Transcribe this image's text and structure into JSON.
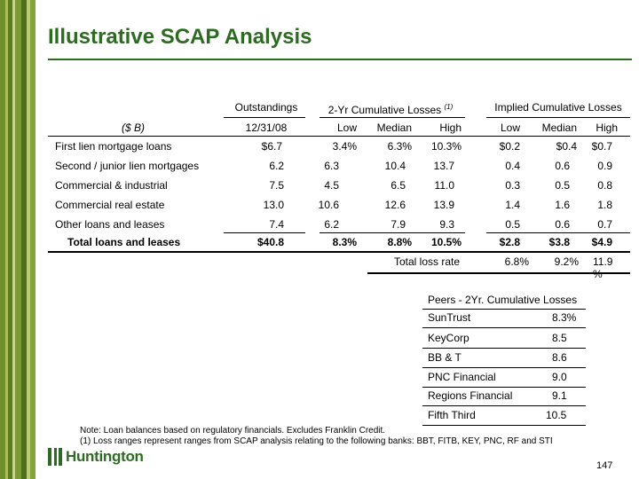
{
  "slide": {
    "title": "Illustrative SCAP Analysis",
    "page_number": "147"
  },
  "table": {
    "group_headers": {
      "outstandings": "Outstandings",
      "cumulative_losses": "2-Yr Cumulative Losses",
      "cumulative_losses_note": "(1)",
      "implied_losses": "Implied Cumulative Losses"
    },
    "sub_headers": {
      "units": "($ B)",
      "date": "12/31/08",
      "low": "Low",
      "median": "Median",
      "high": "High",
      "imp_low": "Low",
      "imp_median": "Median",
      "imp_high": "High"
    },
    "rows": [
      {
        "label": "First lien mortgage loans",
        "outstanding": "$6.7",
        "low": "3.4%",
        "median": "6.3%",
        "high": "10.3%",
        "imp_low": "$0.2",
        "imp_median": "$0.4",
        "imp_high": "$0.7"
      },
      {
        "label": "Second / junior lien mortgages",
        "outstanding": "6.2",
        "low": "6.3",
        "median": "10.4",
        "high": "13.7",
        "imp_low": "0.4",
        "imp_median": "0.6",
        "imp_high": "0.9"
      },
      {
        "label": "Commercial & industrial",
        "outstanding": "7.5",
        "low": "4.5",
        "median": "6.5",
        "high": "11.0",
        "imp_low": "0.3",
        "imp_median": "0.5",
        "imp_high": "0.8"
      },
      {
        "label": "Commercial real estate",
        "outstanding": "13.0",
        "low": "10.6",
        "median": "12.6",
        "high": "13.9",
        "imp_low": "1.4",
        "imp_median": "1.6",
        "imp_high": "1.8"
      },
      {
        "label": "Other loans and leases",
        "outstanding": "7.4",
        "low": "6.2",
        "median": "7.9",
        "high": "9.3",
        "imp_low": "0.5",
        "imp_median": "0.6",
        "imp_high": "0.7"
      }
    ],
    "total": {
      "label": "Total loans and leases",
      "outstanding": "$40.8",
      "low": "8.3%",
      "median": "8.8%",
      "high": "10.5%",
      "imp_low": "$2.8",
      "imp_median": "$3.8",
      "imp_high": "$4.9"
    },
    "loss_rate": {
      "label": "Total loss rate",
      "low": "6.8%",
      "median": "9.2%",
      "high_line1": "11.9",
      "high_line2": "%"
    }
  },
  "peers": {
    "title": "Peers - 2Yr. Cumulative Losses",
    "rows": [
      {
        "name": "SunTrust",
        "value": "8.3%"
      },
      {
        "name": "KeyCorp",
        "value": "8.5"
      },
      {
        "name": "BB & T",
        "value": "8.6"
      },
      {
        "name": "PNC Financial",
        "value": "9.0"
      },
      {
        "name": "Regions Financial",
        "value": "9.1"
      },
      {
        "name": "Fifth Third",
        "value": "10.5"
      }
    ]
  },
  "notes": {
    "note1": "Note: Loan balances based on regulatory financials.  Excludes Franklin Credit.",
    "note2": "(1) Loss ranges represent ranges from SCAP analysis relating to the following banks: BBT, FITB, KEY, PNC, RF and STI"
  },
  "brand": {
    "name": "Huntington",
    "logo_icon": "huntington-logo-icon",
    "accent_color": "#2e6b22"
  }
}
